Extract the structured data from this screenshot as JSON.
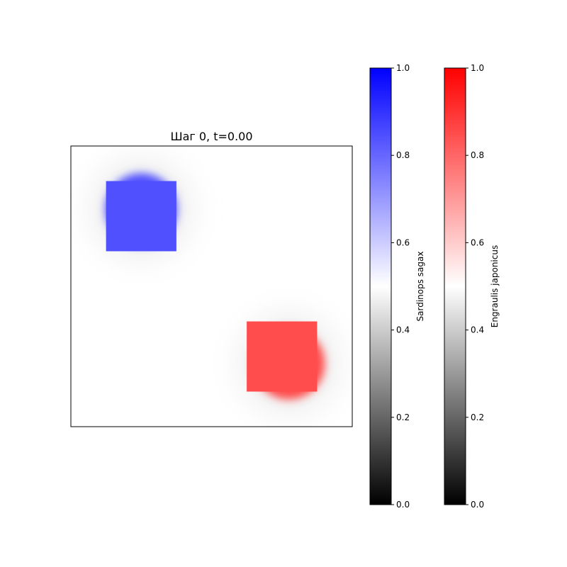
{
  "chart_data": {
    "type": "heatmap",
    "title": "Шаг 0, t=0.00",
    "axes": {
      "xticks": [],
      "yticks": []
    },
    "fields": [
      {
        "name": "Sardinops sagax",
        "color": "#0000ff",
        "shapes": [
          {
            "kind": "square",
            "x_range": [
              0.125,
              0.375
            ],
            "y_range": [
              0.625,
              0.875
            ],
            "value": 1.0
          },
          {
            "kind": "disk",
            "center": [
              0.25,
              0.775
            ],
            "radius": 0.13,
            "value": 1.0,
            "smooth": true
          }
        ]
      },
      {
        "name": "Engraulis japonicus",
        "color": "#ff0000",
        "shapes": [
          {
            "kind": "square",
            "x_range": [
              0.625,
              0.875
            ],
            "y_range": [
              0.125,
              0.375
            ],
            "value": 1.0
          },
          {
            "kind": "disk",
            "center": [
              0.775,
              0.225
            ],
            "radius": 0.13,
            "value": 1.0,
            "smooth": true
          }
        ]
      }
    ],
    "colorbars": [
      {
        "label": "Sardinops sagax",
        "range": [
          0.0,
          1.0
        ],
        "ticks": [
          "0.0",
          "0.2",
          "0.4",
          "0.6",
          "0.8",
          "1.0"
        ],
        "tick_values": [
          0.0,
          0.2,
          0.4,
          0.6,
          0.8,
          1.0
        ],
        "colors": [
          "#000000",
          "#ffffff",
          "#0000ff"
        ]
      },
      {
        "label": "Engraulis japonicus",
        "range": [
          0.0,
          1.0
        ],
        "ticks": [
          "0.0",
          "0.2",
          "0.4",
          "0.6",
          "0.8",
          "1.0"
        ],
        "tick_values": [
          0.0,
          0.2,
          0.4,
          0.6,
          0.8,
          1.0
        ],
        "colors": [
          "#000000",
          "#ffffff",
          "#ff0000"
        ]
      }
    ]
  }
}
